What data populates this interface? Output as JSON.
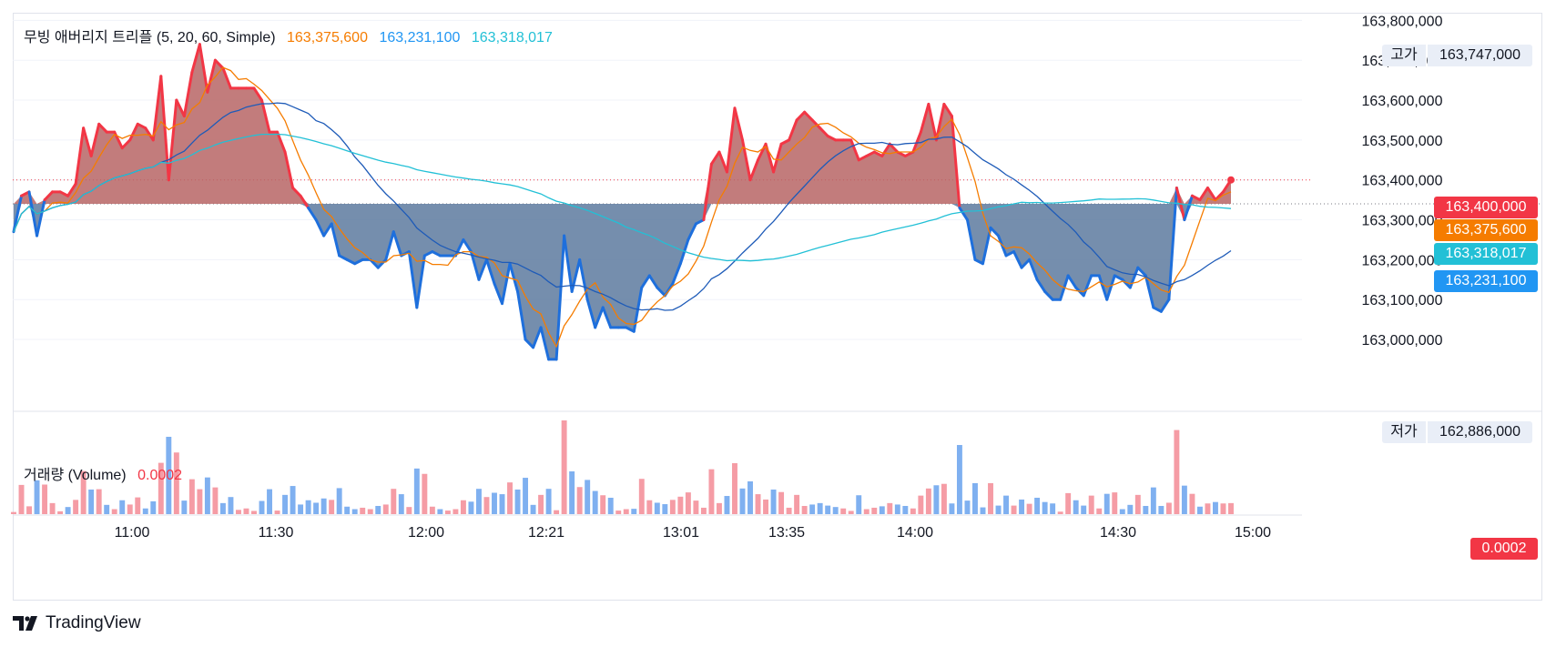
{
  "legend": {
    "title": "무빙 애버리지 트리플 (5, 20, 60, Simple)",
    "ma5": "163,375,600",
    "ma20": "163,231,100",
    "ma60": "163,318,017"
  },
  "volume_legend": {
    "title": "거래량 (Volume)",
    "value": "0.0002"
  },
  "price_axis": {
    "ticks": [
      "163,800,000",
      "163,700,000",
      "163,600,000",
      "163,500,000",
      "163,400,000",
      "163,300,000",
      "163,200,000",
      "163,100,000",
      "163,000,000"
    ],
    "high_label": "고가",
    "high_value": "163,747,000",
    "low_label": "저가",
    "low_value": "162,886,000",
    "last_price_tag": "163,400,000",
    "ma5_tag": "163,375,600",
    "ma60_tag": "163,318,017",
    "ma20_tag": "163,231,100",
    "volume_tag": "0.0002"
  },
  "time_axis": [
    "11:00",
    "11:30",
    "12:00",
    "12:21",
    "13:01",
    "13:35",
    "14:00",
    "14:30",
    "15:00"
  ],
  "brand": "TradingView",
  "colors": {
    "up": "#f23645",
    "down": "#1e6fdc",
    "up_fill": "#b76565",
    "down_fill": "#5d7a9f",
    "ma5": "#f57c00",
    "ma20": "#2962ff",
    "ma60": "#22c0d6",
    "vol_up": "#f59ca5",
    "vol_down": "#7fb0f0"
  },
  "chart_data": {
    "type": "area",
    "baseline": 163340000,
    "ylim": [
      162870000,
      163810000
    ],
    "series": [
      {
        "name": "price",
        "values": [
          163270000,
          163360000,
          163370000,
          163260000,
          163350000,
          163370000,
          163370000,
          163360000,
          163390000,
          163530000,
          163460000,
          163540000,
          163520000,
          163520000,
          163480000,
          163500000,
          163540000,
          163530000,
          163500000,
          163660000,
          163400000,
          163600000,
          163560000,
          163670000,
          163740000,
          163620000,
          163700000,
          163680000,
          163630000,
          163630000,
          163630000,
          163630000,
          163600000,
          163520000,
          163520000,
          163470000,
          163380000,
          163360000,
          163330000,
          163300000,
          163260000,
          163290000,
          163210000,
          163200000,
          163190000,
          163200000,
          163200000,
          163180000,
          163200000,
          163270000,
          163210000,
          163220000,
          163080000,
          163210000,
          163220000,
          163210000,
          163210000,
          163210000,
          163250000,
          163220000,
          163150000,
          163200000,
          163140000,
          163090000,
          163190000,
          163120000,
          163000000,
          162980000,
          163030000,
          162950000,
          162950000,
          163260000,
          163120000,
          163200000,
          163100000,
          163030000,
          163080000,
          163030000,
          163030000,
          163030000,
          163020000,
          163130000,
          163160000,
          163130000,
          163110000,
          163140000,
          163190000,
          163250000,
          163290000,
          163300000,
          163440000,
          163470000,
          163420000,
          163580000,
          163500000,
          163400000,
          163450000,
          163490000,
          163420000,
          163490000,
          163500000,
          163550000,
          163570000,
          163550000,
          163530000,
          163510000,
          163500000,
          163500000,
          163500000,
          163450000,
          163460000,
          163470000,
          163460000,
          163490000,
          163470000,
          163460000,
          163470000,
          163520000,
          163590000,
          163500000,
          163590000,
          163560000,
          163330000,
          163300000,
          163200000,
          163190000,
          163280000,
          163260000,
          163210000,
          163220000,
          163180000,
          163200000,
          163150000,
          163120000,
          163100000,
          163100000,
          163160000,
          163130000,
          163110000,
          163160000,
          163160000,
          163100000,
          163160000,
          163150000,
          163130000,
          163180000,
          163160000,
          163080000,
          163070000,
          163100000,
          163380000,
          163300000,
          163360000,
          163350000,
          163380000,
          163350000,
          163370000,
          163400000
        ]
      },
      {
        "name": "MA5",
        "values": []
      },
      {
        "name": "MA20",
        "values": []
      },
      {
        "name": "MA60",
        "values": []
      }
    ],
    "volume": []
  }
}
